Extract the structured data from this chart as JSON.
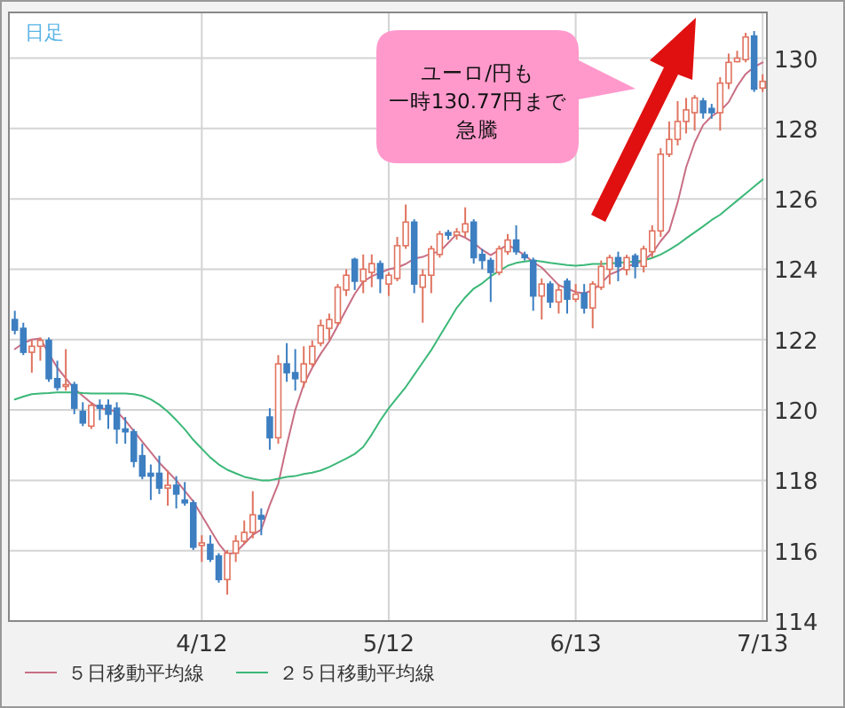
{
  "chart_data": {
    "type": "candlestick",
    "categories": [
      null,
      null,
      null,
      null,
      null,
      null,
      null,
      null,
      null,
      null,
      null,
      null,
      null,
      null,
      null,
      null,
      null,
      null,
      null,
      null,
      null,
      null,
      "4/12",
      null,
      null,
      null,
      null,
      null,
      null,
      null,
      null,
      null,
      null,
      null,
      null,
      null,
      null,
      null,
      null,
      null,
      null,
      null,
      null,
      null,
      "5/12",
      null,
      null,
      null,
      null,
      null,
      null,
      null,
      null,
      null,
      null,
      null,
      null,
      null,
      null,
      null,
      null,
      null,
      null,
      null,
      null,
      null,
      "6/13",
      null,
      null,
      null,
      null,
      null,
      null,
      null,
      null,
      null,
      null,
      null,
      null,
      null,
      null,
      null,
      null,
      null,
      null,
      null,
      null,
      null,
      "7/13"
    ],
    "ohlc": [
      [
        122.57,
        122.82,
        122.15,
        122.27
      ],
      [
        122.32,
        122.48,
        121.56,
        121.64
      ],
      [
        121.64,
        121.98,
        121.06,
        121.81
      ],
      [
        121.81,
        122.06,
        121.4,
        121.98
      ],
      [
        121.98,
        122.06,
        120.8,
        120.89
      ],
      [
        120.89,
        121.4,
        120.55,
        120.64
      ],
      [
        120.67,
        121.73,
        120.55,
        120.72
      ],
      [
        120.72,
        120.8,
        119.88,
        120.05
      ],
      [
        119.96,
        120.22,
        119.54,
        119.63
      ],
      [
        119.54,
        120.22,
        119.46,
        120.13
      ],
      [
        120.13,
        120.3,
        119.71,
        120.05
      ],
      [
        120.13,
        120.3,
        119.46,
        119.88
      ],
      [
        120.05,
        120.22,
        119.04,
        119.46
      ],
      [
        119.46,
        119.8,
        119.04,
        119.38
      ],
      [
        119.38,
        119.46,
        118.37,
        118.54
      ],
      [
        118.7,
        119.04,
        118.03,
        118.12
      ],
      [
        118.2,
        118.45,
        117.44,
        118.12
      ],
      [
        118.2,
        118.7,
        117.61,
        117.78
      ],
      [
        117.78,
        118.28,
        117.28,
        117.86
      ],
      [
        117.86,
        118.12,
        117.2,
        117.61
      ],
      [
        117.44,
        117.95,
        117.28,
        117.36
      ],
      [
        117.36,
        117.44,
        116.02,
        116.1
      ],
      [
        116.15,
        116.44,
        115.68,
        116.22
      ],
      [
        116.18,
        116.44,
        115.68,
        115.76
      ],
      [
        115.85,
        115.93,
        115.09,
        115.18
      ],
      [
        115.18,
        116.02,
        114.75,
        115.93
      ],
      [
        115.93,
        116.44,
        115.68,
        116.27
      ],
      [
        116.27,
        116.86,
        116.18,
        116.52
      ],
      [
        116.52,
        117.69,
        116.35,
        117.02
      ],
      [
        117.0,
        117.2,
        116.44,
        116.9
      ],
      [
        119.8,
        120.05,
        118.87,
        119.21
      ],
      [
        119.21,
        121.56,
        119.04,
        121.31
      ],
      [
        121.31,
        121.9,
        120.8,
        121.06
      ],
      [
        121.06,
        121.73,
        120.55,
        120.89
      ],
      [
        120.8,
        121.81,
        120.64,
        121.31
      ],
      [
        121.31,
        121.98,
        121.23,
        121.81
      ],
      [
        121.9,
        122.57,
        121.81,
        122.4
      ],
      [
        122.32,
        122.74,
        121.98,
        122.57
      ],
      [
        122.48,
        123.58,
        122.4,
        123.49
      ],
      [
        123.41,
        124.0,
        123.24,
        123.83
      ],
      [
        124.28,
        124.33,
        123.41,
        123.66
      ],
      [
        123.66,
        124.42,
        123.32,
        124.0
      ],
      [
        123.91,
        124.42,
        123.49,
        124.16
      ],
      [
        124.16,
        124.25,
        123.32,
        123.74
      ],
      [
        123.58,
        123.91,
        123.24,
        123.83
      ],
      [
        123.74,
        124.92,
        123.66,
        124.67
      ],
      [
        124.67,
        125.84,
        124.58,
        125.34
      ],
      [
        125.34,
        125.42,
        123.32,
        123.58
      ],
      [
        123.49,
        124.0,
        122.48,
        123.83
      ],
      [
        123.83,
        124.67,
        123.32,
        124.58
      ],
      [
        124.42,
        125.09,
        124.33,
        125.0
      ],
      [
        125.04,
        125.12,
        124.84,
        124.97
      ],
      [
        124.97,
        125.17,
        124.84,
        125.06
      ],
      [
        125.06,
        125.76,
        124.92,
        125.29
      ],
      [
        125.34,
        125.42,
        124.16,
        124.33
      ],
      [
        124.42,
        124.58,
        124.0,
        124.25
      ],
      [
        124.25,
        124.33,
        123.07,
        123.91
      ],
      [
        123.91,
        124.67,
        123.83,
        124.58
      ],
      [
        124.5,
        125.0,
        124.41,
        124.83
      ],
      [
        124.83,
        125.25,
        124.41,
        124.5
      ],
      [
        124.41,
        124.5,
        124.25,
        124.33
      ],
      [
        124.25,
        124.33,
        122.82,
        123.24
      ],
      [
        123.24,
        123.74,
        122.57,
        123.58
      ],
      [
        123.58,
        123.66,
        122.9,
        123.07
      ],
      [
        123.07,
        123.58,
        122.74,
        123.41
      ],
      [
        123.66,
        123.74,
        122.74,
        123.15
      ],
      [
        123.15,
        123.58,
        123.07,
        123.29
      ],
      [
        123.32,
        123.58,
        122.74,
        122.9
      ],
      [
        122.9,
        123.66,
        122.32,
        123.58
      ],
      [
        123.49,
        124.25,
        123.41,
        124.08
      ],
      [
        124.0,
        124.41,
        123.57,
        124.33
      ],
      [
        124.33,
        124.5,
        123.66,
        124.08
      ],
      [
        123.99,
        124.41,
        123.83,
        124.33
      ],
      [
        124.38,
        124.45,
        123.74,
        124.08
      ],
      [
        124.08,
        124.67,
        123.91,
        124.58
      ],
      [
        124.5,
        125.25,
        124.33,
        125.09
      ],
      [
        125.09,
        127.44,
        124.92,
        127.27
      ],
      [
        127.27,
        128.2,
        127.19,
        127.69
      ],
      [
        127.69,
        128.78,
        127.52,
        128.2
      ],
      [
        128.2,
        128.87,
        127.86,
        128.53
      ],
      [
        128.45,
        128.95,
        127.94,
        128.87
      ],
      [
        128.78,
        128.87,
        128.28,
        128.45
      ],
      [
        128.57,
        128.7,
        128.28,
        128.45
      ],
      [
        128.45,
        129.46,
        127.94,
        129.29
      ],
      [
        129.29,
        130.13,
        129.12,
        129.88
      ],
      [
        129.9,
        130.21,
        129.88,
        130.0
      ],
      [
        129.96,
        130.72,
        129.88,
        130.6
      ],
      [
        130.63,
        130.77,
        129.04,
        129.12
      ],
      [
        129.15,
        129.54,
        129.04,
        129.34
      ]
    ],
    "series": [
      {
        "name": "５日移動平均線",
        "type": "line",
        "color": "#c86e84",
        "values": [
          121.73,
          121.9,
          122.0,
          122.03,
          121.6,
          121.2,
          120.9,
          120.6,
          120.4,
          120.2,
          120.05,
          120.0,
          119.96,
          119.7,
          119.4,
          119.1,
          118.8,
          118.5,
          118.25,
          118.0,
          117.7,
          117.4,
          117.0,
          116.6,
          116.2,
          115.9,
          115.95,
          116.2,
          116.45,
          116.6,
          117.3,
          117.9,
          119.0,
          120.0,
          120.72,
          121.2,
          121.6,
          121.95,
          122.4,
          122.85,
          123.3,
          123.65,
          123.8,
          123.9,
          124.0,
          124.05,
          124.15,
          124.3,
          124.35,
          124.45,
          124.5,
          124.75,
          125.0,
          124.9,
          124.75,
          124.55,
          124.4,
          124.55,
          124.7,
          124.55,
          124.4,
          124.2,
          124.05,
          123.8,
          123.55,
          123.45,
          123.35,
          123.32,
          123.4,
          123.6,
          123.85,
          123.95,
          124.08,
          124.15,
          124.25,
          124.45,
          124.8,
          125.09,
          125.9,
          126.9,
          127.6,
          128.1,
          128.35,
          128.5,
          128.75,
          129.2,
          129.55,
          129.75,
          129.88
        ]
      },
      {
        "name": "２５日移動平均線",
        "type": "line",
        "color": "#3cb878",
        "values": [
          120.3,
          120.38,
          120.45,
          120.47,
          120.48,
          120.5,
          120.5,
          120.5,
          120.48,
          120.47,
          120.47,
          120.47,
          120.47,
          120.47,
          120.45,
          120.4,
          120.3,
          120.15,
          119.95,
          119.71,
          119.45,
          119.15,
          118.9,
          118.65,
          118.45,
          118.3,
          118.2,
          118.1,
          118.05,
          118.0,
          118.0,
          118.05,
          118.1,
          118.12,
          118.18,
          118.22,
          118.28,
          118.38,
          118.5,
          118.62,
          118.75,
          118.95,
          119.3,
          119.7,
          120.05,
          120.35,
          120.65,
          121.0,
          121.35,
          121.7,
          122.1,
          122.5,
          122.9,
          123.2,
          123.45,
          123.6,
          123.8,
          123.95,
          124.1,
          124.18,
          124.22,
          124.25,
          124.22,
          124.18,
          124.15,
          124.12,
          124.1,
          124.12,
          124.15,
          124.15,
          124.16,
          124.18,
          124.2,
          124.22,
          124.25,
          124.32,
          124.42,
          124.55,
          124.7,
          124.88,
          125.05,
          125.22,
          125.4,
          125.55,
          125.75,
          125.95,
          126.15,
          126.35,
          126.55
        ]
      }
    ],
    "ylim": [
      114,
      131.3
    ],
    "yticks": [
      114,
      116,
      118,
      120,
      122,
      124,
      126,
      128,
      130
    ],
    "grid": true,
    "legend": "bottom",
    "annotations": [
      "日足",
      "ユーロ/円も",
      "一時130.77円まで",
      "急騰"
    ]
  }
}
